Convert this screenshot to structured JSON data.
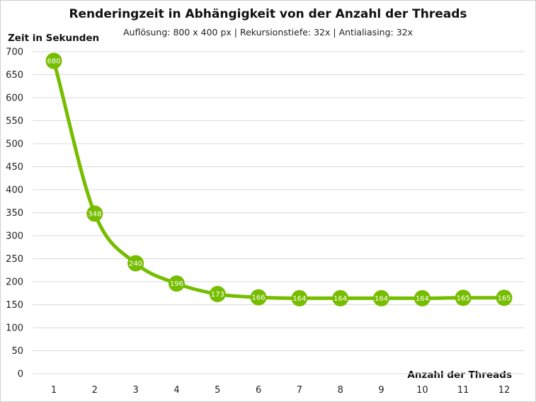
{
  "chart_data": {
    "type": "line",
    "title": "Renderingzeit in Abhängigkeit von der Anzahl der Threads",
    "subtitle": "Auflösung: 800 x 400 px | Rekursionstiefe: 32x | Antialiasing: 32x",
    "xlabel": "Anzahl der Threads",
    "ylabel": "Zeit in Sekunden",
    "x": [
      1,
      2,
      3,
      4,
      5,
      6,
      7,
      8,
      9,
      10,
      11,
      12
    ],
    "y_ticks": [
      0,
      50,
      100,
      150,
      200,
      250,
      300,
      350,
      400,
      450,
      500,
      550,
      600,
      650,
      700
    ],
    "ylim": [
      0,
      700
    ],
    "grid": true,
    "smooth": true,
    "series": [
      {
        "values": [
          680,
          348,
          240,
          196,
          173,
          166,
          164,
          164,
          164,
          164,
          165,
          165
        ]
      }
    ],
    "colors": {
      "line": "#76bd00",
      "grid": "#d9d9d9",
      "label_text": "#ffffff"
    }
  }
}
